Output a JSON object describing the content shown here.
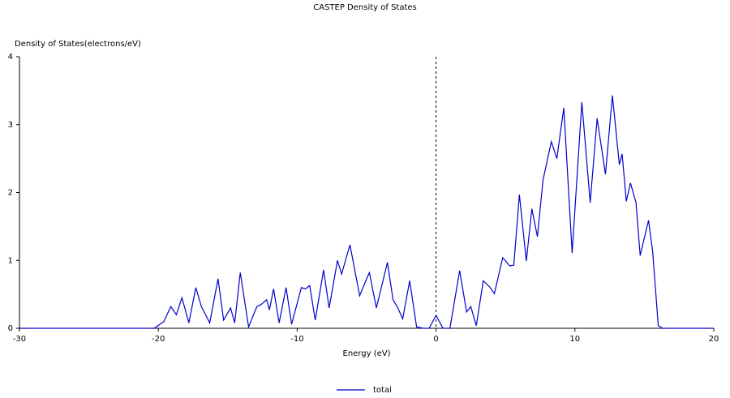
{
  "chart_data": {
    "type": "line",
    "title": "CASTEP Density of States",
    "y_label": "Density of States(electrons/eV)",
    "x_label": "Energy (eV)",
    "x": [
      -30,
      -20.3,
      -19.6,
      -19.1,
      -18.7,
      -18.3,
      -17.8,
      -17.3,
      -16.9,
      -16.3,
      -15.7,
      -15.3,
      -14.8,
      -14.5,
      -14.1,
      -13.5,
      -12.9,
      -12.6,
      -12.2,
      -12.0,
      -11.7,
      -11.3,
      -10.8,
      -10.4,
      -9.7,
      -9.4,
      -9.1,
      -8.7,
      -8.1,
      -7.7,
      -7.1,
      -6.8,
      -6.2,
      -5.5,
      -5.0,
      -4.8,
      -4.3,
      -3.5,
      -3.1,
      -2.8,
      -2.4,
      -1.9,
      -1.4,
      -0.9,
      -0.5,
      0,
      0.5,
      1.0,
      1.7,
      2.2,
      2.5,
      2.9,
      3.4,
      3.9,
      4.2,
      4.8,
      5.3,
      5.6,
      6.0,
      6.5,
      6.9,
      7.3,
      7.7,
      8.3,
      8.7,
      9.2,
      9.8,
      10.5,
      11.1,
      11.6,
      12.2,
      12.7,
      13.2,
      13.4,
      13.7,
      14.0,
      14.4,
      14.7,
      15.3,
      15.6,
      16.0,
      16.3,
      20
    ],
    "series": [
      {
        "name": "total",
        "color": "#0000cc",
        "values": [
          0,
          0,
          0.1,
          0.32,
          0.2,
          0.45,
          0.08,
          0.6,
          0.32,
          0.08,
          0.73,
          0.12,
          0.3,
          0.08,
          0.82,
          0.02,
          0.32,
          0.35,
          0.42,
          0.27,
          0.58,
          0.08,
          0.6,
          0.06,
          0.6,
          0.58,
          0.63,
          0.12,
          0.86,
          0.3,
          1.0,
          0.8,
          1.23,
          0.48,
          0.73,
          0.82,
          0.3,
          0.97,
          0.42,
          0.32,
          0.14,
          0.7,
          0.02,
          0,
          0,
          0.19,
          0,
          0,
          0.85,
          0.24,
          0.32,
          0.04,
          0.7,
          0.6,
          0.51,
          1.04,
          0.92,
          0.93,
          1.97,
          0.99,
          1.76,
          1.35,
          2.18,
          2.75,
          2.5,
          3.25,
          1.11,
          3.33,
          1.85,
          3.09,
          2.27,
          3.43,
          2.41,
          2.57,
          1.87,
          2.14,
          1.85,
          1.07,
          1.59,
          1.13,
          0.04,
          0,
          0
        ]
      }
    ],
    "xlim": [
      -30,
      20
    ],
    "xticks": [
      -30,
      -20,
      -10,
      0,
      10,
      20
    ],
    "ylim": [
      0,
      4
    ],
    "yticks": [
      0,
      1,
      2,
      3,
      4
    ],
    "fermi_line_x": 0
  }
}
